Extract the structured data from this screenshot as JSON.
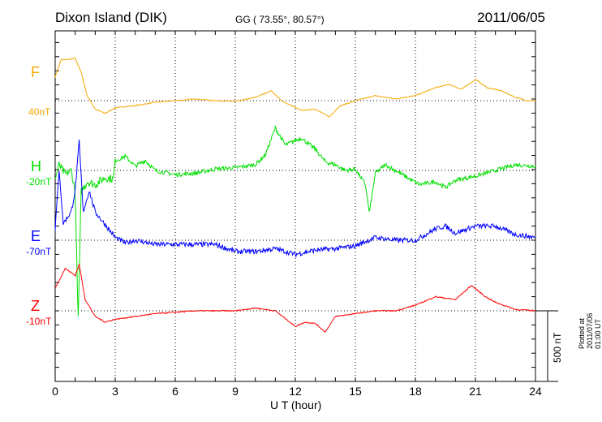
{
  "header": {
    "station": "Dixon Island (DIK)",
    "coords": "GG ( 73.55°,  80.57°)",
    "date": "2011/06/05"
  },
  "footer": {
    "plotted": "Plotted at 2011/07/06 01:00 UT",
    "scale_label": "500 nT"
  },
  "chart_data": {
    "type": "line",
    "title": "Dixon Island (DIK)",
    "xlabel": "U T (hour)",
    "xlim": [
      0,
      24
    ],
    "xticks": [
      "0",
      "3",
      "6",
      "9",
      "12",
      "15",
      "18",
      "21",
      "24"
    ],
    "scale_bar_nT": 500,
    "grid": "dotted verticals every 3 h, dotted baseline per component",
    "series": [
      {
        "name": "F",
        "offset_label": "40nT",
        "color": "#f5a800",
        "jitter": 6,
        "points": [
          [
            0,
            167
          ],
          [
            0.3,
            290
          ],
          [
            0.6,
            290
          ],
          [
            1,
            300
          ],
          [
            1.3,
            200
          ],
          [
            1.6,
            35
          ],
          [
            2,
            -60
          ],
          [
            2.5,
            -90
          ],
          [
            3,
            -50
          ],
          [
            4,
            -35
          ],
          [
            5,
            -12
          ],
          [
            6,
            0
          ],
          [
            7,
            12
          ],
          [
            8,
            0
          ],
          [
            9,
            -6
          ],
          [
            10,
            23
          ],
          [
            10.8,
            70
          ],
          [
            11.3,
            0
          ],
          [
            12.3,
            -70
          ],
          [
            13,
            -60
          ],
          [
            13.7,
            -115
          ],
          [
            14.2,
            -40
          ],
          [
            15,
            0
          ],
          [
            16,
            35
          ],
          [
            17,
            12
          ],
          [
            18,
            35
          ],
          [
            19,
            92
          ],
          [
            19.7,
            115
          ],
          [
            20.3,
            80
          ],
          [
            21,
            150
          ],
          [
            21.6,
            90
          ],
          [
            22.3,
            70
          ],
          [
            23,
            23
          ],
          [
            23.6,
            0
          ],
          [
            24,
            0
          ]
        ]
      },
      {
        "name": "H",
        "offset_label": "-20nT",
        "color": "#00e000",
        "jitter": 30,
        "points": [
          [
            0,
            -60
          ],
          [
            0.2,
            40
          ],
          [
            0.5,
            -30
          ],
          [
            0.8,
            0
          ],
          [
            1,
            -150
          ],
          [
            1.15,
            -1060
          ],
          [
            1.3,
            -150
          ],
          [
            1.6,
            -80
          ],
          [
            2,
            -100
          ],
          [
            2.5,
            -50
          ],
          [
            2.9,
            -60
          ],
          [
            3,
            70
          ],
          [
            3.5,
            100
          ],
          [
            4,
            30
          ],
          [
            4.5,
            70
          ],
          [
            5,
            0
          ],
          [
            6,
            -30
          ],
          [
            7,
            -20
          ],
          [
            8,
            10
          ],
          [
            9,
            20
          ],
          [
            10,
            40
          ],
          [
            10.5,
            110
          ],
          [
            11,
            300
          ],
          [
            11.5,
            180
          ],
          [
            12.3,
            230
          ],
          [
            13,
            150
          ],
          [
            13.5,
            60
          ],
          [
            14,
            40
          ],
          [
            14.5,
            0
          ],
          [
            15,
            10
          ],
          [
            15.5,
            -100
          ],
          [
            15.7,
            -300
          ],
          [
            16,
            -20
          ],
          [
            16.5,
            40
          ],
          [
            17,
            0
          ],
          [
            17.7,
            -60
          ],
          [
            18.2,
            -100
          ],
          [
            19,
            -80
          ],
          [
            19.5,
            -120
          ],
          [
            20,
            -70
          ],
          [
            21,
            -40
          ],
          [
            22,
            0
          ],
          [
            23,
            40
          ],
          [
            24,
            30
          ]
        ]
      },
      {
        "name": "E",
        "offset_label": "-70nT",
        "color": "#0000ff",
        "jitter": 35,
        "points": [
          [
            0,
            80
          ],
          [
            0.2,
            500
          ],
          [
            0.4,
            120
          ],
          [
            0.8,
            200
          ],
          [
            1,
            350
          ],
          [
            1.2,
            700
          ],
          [
            1.4,
            200
          ],
          [
            1.7,
            350
          ],
          [
            2,
            200
          ],
          [
            2.5,
            110
          ],
          [
            3,
            20
          ],
          [
            3.5,
            -20
          ],
          [
            4,
            0
          ],
          [
            5,
            -30
          ],
          [
            6,
            -30
          ],
          [
            7,
            -30
          ],
          [
            8,
            -30
          ],
          [
            9,
            -80
          ],
          [
            10,
            -80
          ],
          [
            11,
            -60
          ],
          [
            12,
            -100
          ],
          [
            13,
            -70
          ],
          [
            14,
            -60
          ],
          [
            15,
            -40
          ],
          [
            16,
            20
          ],
          [
            17,
            0
          ],
          [
            18,
            0
          ],
          [
            19,
            80
          ],
          [
            19.5,
            100
          ],
          [
            20,
            50
          ],
          [
            21,
            100
          ],
          [
            22,
            100
          ],
          [
            23,
            40
          ],
          [
            24,
            20
          ]
        ]
      },
      {
        "name": "Z",
        "offset_label": "-10nT",
        "color": "#ff0000",
        "jitter": 8,
        "points": [
          [
            0,
            160
          ],
          [
            0.5,
            300
          ],
          [
            1,
            250
          ],
          [
            1.2,
            330
          ],
          [
            1.5,
            80
          ],
          [
            2,
            -40
          ],
          [
            2.5,
            -80
          ],
          [
            3,
            -60
          ],
          [
            4,
            -40
          ],
          [
            5,
            -20
          ],
          [
            6,
            -10
          ],
          [
            7,
            0
          ],
          [
            8,
            0
          ],
          [
            9,
            0
          ],
          [
            10,
            20
          ],
          [
            11,
            0
          ],
          [
            12,
            -110
          ],
          [
            12.5,
            -80
          ],
          [
            13,
            -90
          ],
          [
            13.5,
            -150
          ],
          [
            14,
            -40
          ],
          [
            15,
            -20
          ],
          [
            16,
            0
          ],
          [
            17,
            0
          ],
          [
            18,
            40
          ],
          [
            19,
            100
          ],
          [
            20,
            80
          ],
          [
            20.8,
            180
          ],
          [
            21.5,
            100
          ],
          [
            22,
            60
          ],
          [
            23,
            10
          ],
          [
            24,
            0
          ]
        ]
      }
    ]
  }
}
